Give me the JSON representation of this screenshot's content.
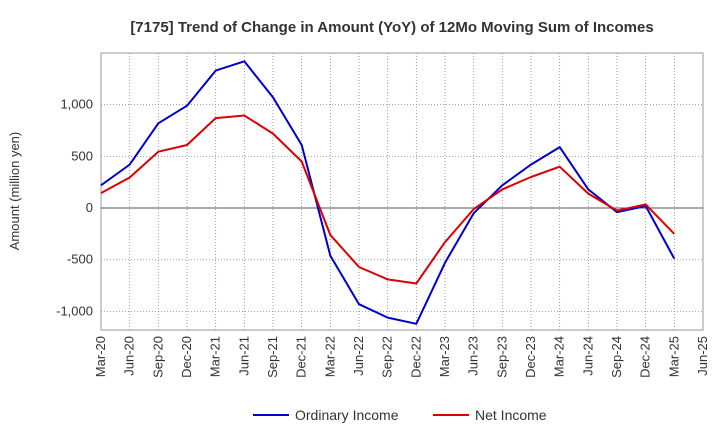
{
  "chart_data": {
    "type": "line",
    "title": "[7175]  Trend of Change in Amount (YoY) of 12Mo Moving Sum of Incomes",
    "xlabel": "",
    "ylabel": "Amount (million yen)",
    "ylim": [
      -1180,
      1500
    ],
    "yticks": [
      -1000,
      -500,
      0,
      500,
      1000
    ],
    "ytick_labels": [
      "-1,000",
      "-500",
      "0",
      "500",
      "1,000"
    ],
    "categories": [
      "Mar-20",
      "Jun-20",
      "Sep-20",
      "Dec-20",
      "Mar-21",
      "Jun-21",
      "Sep-21",
      "Dec-21",
      "Mar-22",
      "Jun-22",
      "Sep-22",
      "Dec-22",
      "Mar-23",
      "Jun-23",
      "Sep-23",
      "Dec-23",
      "Mar-24",
      "Jun-24",
      "Sep-24",
      "Dec-24",
      "Mar-25",
      "Jun-25"
    ],
    "series": [
      {
        "name": "Ordinary Income",
        "color": "#0000cc",
        "values": [
          220,
          420,
          820,
          990,
          1330,
          1420,
          1070,
          610,
          -460,
          -930,
          -1060,
          -1120,
          -530,
          -50,
          220,
          420,
          590,
          180,
          -40,
          20,
          -490,
          null
        ]
      },
      {
        "name": "Net Income",
        "color": "#dd0000",
        "values": [
          145,
          295,
          545,
          610,
          870,
          895,
          720,
          450,
          -260,
          -570,
          -690,
          -730,
          -330,
          -10,
          180,
          300,
          400,
          140,
          -25,
          35,
          -250,
          null
        ]
      }
    ],
    "grid": true,
    "legend": "bottom"
  }
}
